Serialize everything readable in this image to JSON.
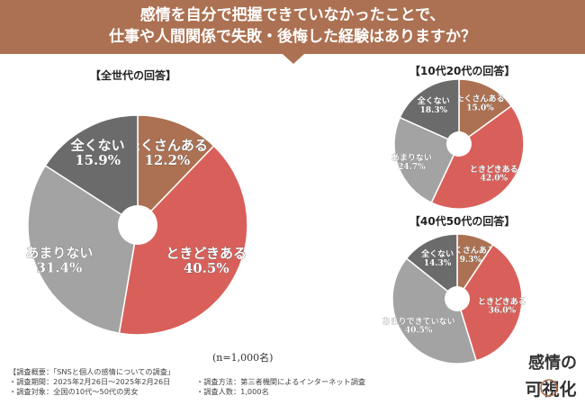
{
  "header": {
    "line1": "感情を自分で把握できていなかったことで、",
    "line2": "仕事や人間関係で失敗・後悔した経験はありますか？"
  },
  "colors": {
    "header_bg": "#ac7152",
    "often": "#ac7152",
    "sometimes": "#d9605a",
    "rarely": "#a3a3a3",
    "never": "#6b6b6b"
  },
  "chart_data": [
    {
      "type": "pie",
      "title": "【全世代の回答】",
      "slices": [
        {
          "label": "たくさんある",
          "value": 12.2,
          "value_text": "12.2%"
        },
        {
          "label": "ときどきある",
          "value": 40.5,
          "value_text": "40.5%"
        },
        {
          "label": "あまりない",
          "value": 31.4,
          "value_text": "31.4%"
        },
        {
          "label": "全くない",
          "value": 15.9,
          "value_text": "15.9%"
        }
      ]
    },
    {
      "type": "pie",
      "title": "【10代20代の回答】",
      "slices": [
        {
          "label": "たくさんある",
          "value": 15.0,
          "value_text": "15.0%"
        },
        {
          "label": "ときどきある",
          "value": 42.0,
          "value_text": "42.0%"
        },
        {
          "label": "あまりない",
          "value": 24.7,
          "value_text": "24.7%"
        },
        {
          "label": "全くない",
          "value": 18.3,
          "value_text": "18.3%"
        }
      ]
    },
    {
      "type": "pie",
      "title": "【40代50代の回答】",
      "slices": [
        {
          "label": "たくさんある",
          "value": 9.3,
          "value_text": "9.3%"
        },
        {
          "label": "ときどきある",
          "value": 36.0,
          "value_text": "36.0%"
        },
        {
          "label": "あまりできていない",
          "value": 40.5,
          "value_text": "40.5%"
        },
        {
          "label": "全くない",
          "value": 14.3,
          "value_text": "14.3%"
        }
      ]
    }
  ],
  "n_note": "(n=1,000名)",
  "footer": {
    "overview": "【調査概要：「SNSと個人の感情についての調査」",
    "period": "・調査期間：2025年2月26日～2025年2月26日",
    "method": "・調査方法：第三者機関によるインターネット調査",
    "target": "・調査対象：全国の10代～50代の男女",
    "people": "・調査人数：1,000名"
  },
  "logo": {
    "text": "感情の可視化"
  }
}
